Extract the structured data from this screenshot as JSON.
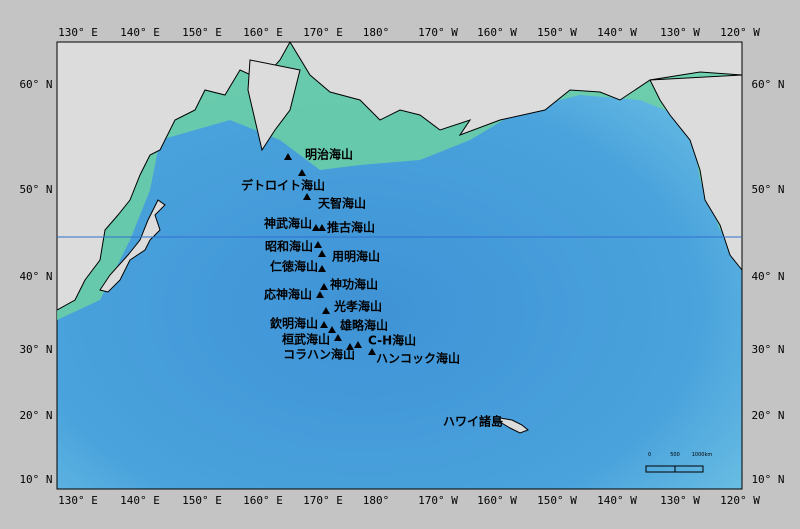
{
  "map": {
    "longitude_labels": [
      "130° E",
      "140° E",
      "150° E",
      "160° E",
      "170° E",
      "180°",
      "170° W",
      "160° W",
      "150° W",
      "140° W",
      "130° W",
      "120° W"
    ],
    "latitude_labels": [
      "60° N",
      "50° N",
      "40° N",
      "30° N",
      "20° N",
      "10° N"
    ],
    "seamounts": [
      "明治海山",
      "デトロイト海山",
      "天智海山",
      "神武海山",
      "推古海山",
      "昭和海山",
      "用明海山",
      "仁徳海山",
      "神功海山",
      "応神海山",
      "光孝海山",
      "欽明海山",
      "雄略海山",
      "桓武海山",
      "C-H海山",
      "コラハン海山",
      "ハンコック海山"
    ],
    "islands": "ハワイ諸島",
    "scale_labels": [
      "0",
      "500",
      "1000km"
    ]
  }
}
